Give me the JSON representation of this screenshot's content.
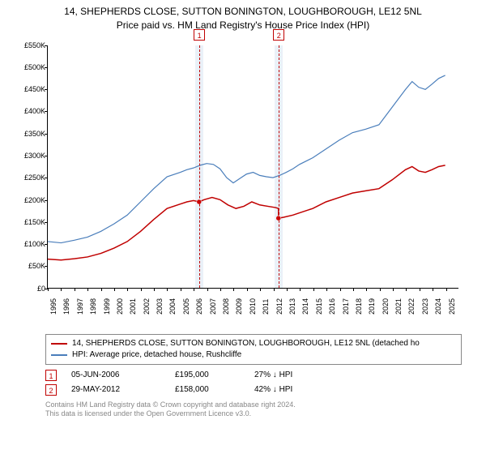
{
  "title": {
    "line1": "14, SHEPHERDS CLOSE, SUTTON BONINGTON, LOUGHBOROUGH, LE12 5NL",
    "line2": "Price paid vs. HM Land Registry's House Price Index (HPI)"
  },
  "chart": {
    "type": "line",
    "background_color": "#ffffff",
    "ylim": [
      0,
      550
    ],
    "y_ticks": [
      0,
      50,
      100,
      150,
      200,
      250,
      300,
      350,
      400,
      450,
      500,
      550
    ],
    "y_tick_labels": [
      "£0",
      "£50K",
      "£100K",
      "£150K",
      "£200K",
      "£250K",
      "£300K",
      "£350K",
      "£400K",
      "£450K",
      "£500K",
      "£550K"
    ],
    "x_years": [
      1995,
      1996,
      1997,
      1998,
      1999,
      2000,
      2001,
      2002,
      2003,
      2004,
      2005,
      2006,
      2007,
      2008,
      2009,
      2010,
      2011,
      2012,
      2013,
      2014,
      2015,
      2016,
      2017,
      2018,
      2019,
      2020,
      2021,
      2022,
      2023,
      2024,
      2025
    ],
    "xlim": [
      1995,
      2026
    ],
    "series": [
      {
        "name": "property",
        "label": "14, SHEPHERDS CLOSE, SUTTON BONINGTON, LOUGHBOROUGH, LE12 5NL (detached ho",
        "color": "#c00000",
        "line_width": 1.5,
        "data": [
          [
            1995.0,
            65
          ],
          [
            1996.0,
            63
          ],
          [
            1997.0,
            66
          ],
          [
            1998.0,
            70
          ],
          [
            1999.0,
            78
          ],
          [
            2000.0,
            90
          ],
          [
            2001.0,
            105
          ],
          [
            2002.0,
            128
          ],
          [
            2003.0,
            155
          ],
          [
            2004.0,
            180
          ],
          [
            2005.0,
            190
          ],
          [
            2005.5,
            195
          ],
          [
            2006.0,
            198
          ],
          [
            2006.42,
            195
          ],
          [
            2006.8,
            200
          ],
          [
            2007.4,
            205
          ],
          [
            2008.0,
            200
          ],
          [
            2008.6,
            188
          ],
          [
            2009.2,
            180
          ],
          [
            2009.8,
            185
          ],
          [
            2010.4,
            195
          ],
          [
            2011.0,
            188
          ],
          [
            2011.6,
            185
          ],
          [
            2012.2,
            182
          ],
          [
            2012.41,
            180
          ],
          [
            2012.42,
            158
          ],
          [
            2012.8,
            160
          ],
          [
            2013.5,
            165
          ],
          [
            2014.0,
            170
          ],
          [
            2015.0,
            180
          ],
          [
            2016.0,
            195
          ],
          [
            2017.0,
            205
          ],
          [
            2018.0,
            215
          ],
          [
            2019.0,
            220
          ],
          [
            2020.0,
            225
          ],
          [
            2021.0,
            245
          ],
          [
            2022.0,
            268
          ],
          [
            2022.5,
            275
          ],
          [
            2023.0,
            265
          ],
          [
            2023.5,
            262
          ],
          [
            2024.0,
            268
          ],
          [
            2024.5,
            275
          ],
          [
            2025.0,
            278
          ]
        ]
      },
      {
        "name": "hpi",
        "label": "HPI: Average price, detached house, Rushcliffe",
        "color": "#4a7ebb",
        "line_width": 1.2,
        "data": [
          [
            1995.0,
            105
          ],
          [
            1996.0,
            102
          ],
          [
            1997.0,
            108
          ],
          [
            1998.0,
            115
          ],
          [
            1999.0,
            128
          ],
          [
            2000.0,
            145
          ],
          [
            2001.0,
            165
          ],
          [
            2002.0,
            195
          ],
          [
            2003.0,
            225
          ],
          [
            2004.0,
            252
          ],
          [
            2005.0,
            262
          ],
          [
            2005.5,
            268
          ],
          [
            2006.0,
            272
          ],
          [
            2006.5,
            278
          ],
          [
            2007.0,
            282
          ],
          [
            2007.5,
            280
          ],
          [
            2008.0,
            270
          ],
          [
            2008.5,
            250
          ],
          [
            2009.0,
            238
          ],
          [
            2009.5,
            248
          ],
          [
            2010.0,
            258
          ],
          [
            2010.5,
            262
          ],
          [
            2011.0,
            255
          ],
          [
            2011.5,
            252
          ],
          [
            2012.0,
            250
          ],
          [
            2012.5,
            255
          ],
          [
            2013.0,
            262
          ],
          [
            2013.5,
            270
          ],
          [
            2014.0,
            280
          ],
          [
            2015.0,
            295
          ],
          [
            2016.0,
            315
          ],
          [
            2017.0,
            335
          ],
          [
            2018.0,
            352
          ],
          [
            2019.0,
            360
          ],
          [
            2020.0,
            370
          ],
          [
            2021.0,
            410
          ],
          [
            2022.0,
            450
          ],
          [
            2022.5,
            468
          ],
          [
            2023.0,
            455
          ],
          [
            2023.5,
            450
          ],
          [
            2024.0,
            462
          ],
          [
            2024.5,
            475
          ],
          [
            2025.0,
            482
          ]
        ]
      }
    ],
    "markers": [
      {
        "id": "1",
        "x_start": 2006.1,
        "x_end": 2006.7,
        "line_x": 2006.42,
        "dot_y": 195
      },
      {
        "id": "2",
        "x_start": 2012.1,
        "x_end": 2012.7,
        "line_x": 2012.41,
        "dot_y": 158
      }
    ],
    "marker_band_color": "#eaf1f8",
    "marker_border_color": "#c00000",
    "label_fontsize": 9
  },
  "legend": {
    "rows": [
      {
        "color": "#c00000",
        "label": "14, SHEPHERDS CLOSE, SUTTON BONINGTON, LOUGHBOROUGH, LE12 5NL (detached ho"
      },
      {
        "color": "#4a7ebb",
        "label": "HPI: Average price, detached house, Rushcliffe"
      }
    ]
  },
  "sales": [
    {
      "id": "1",
      "date": "05-JUN-2006",
      "price": "£195,000",
      "delta": "27% ↓ HPI"
    },
    {
      "id": "2",
      "date": "29-MAY-2012",
      "price": "£158,000",
      "delta": "42% ↓ HPI"
    }
  ],
  "footer": {
    "line1": "Contains HM Land Registry data © Crown copyright and database right 2024.",
    "line2": "This data is licensed under the Open Government Licence v3.0."
  }
}
